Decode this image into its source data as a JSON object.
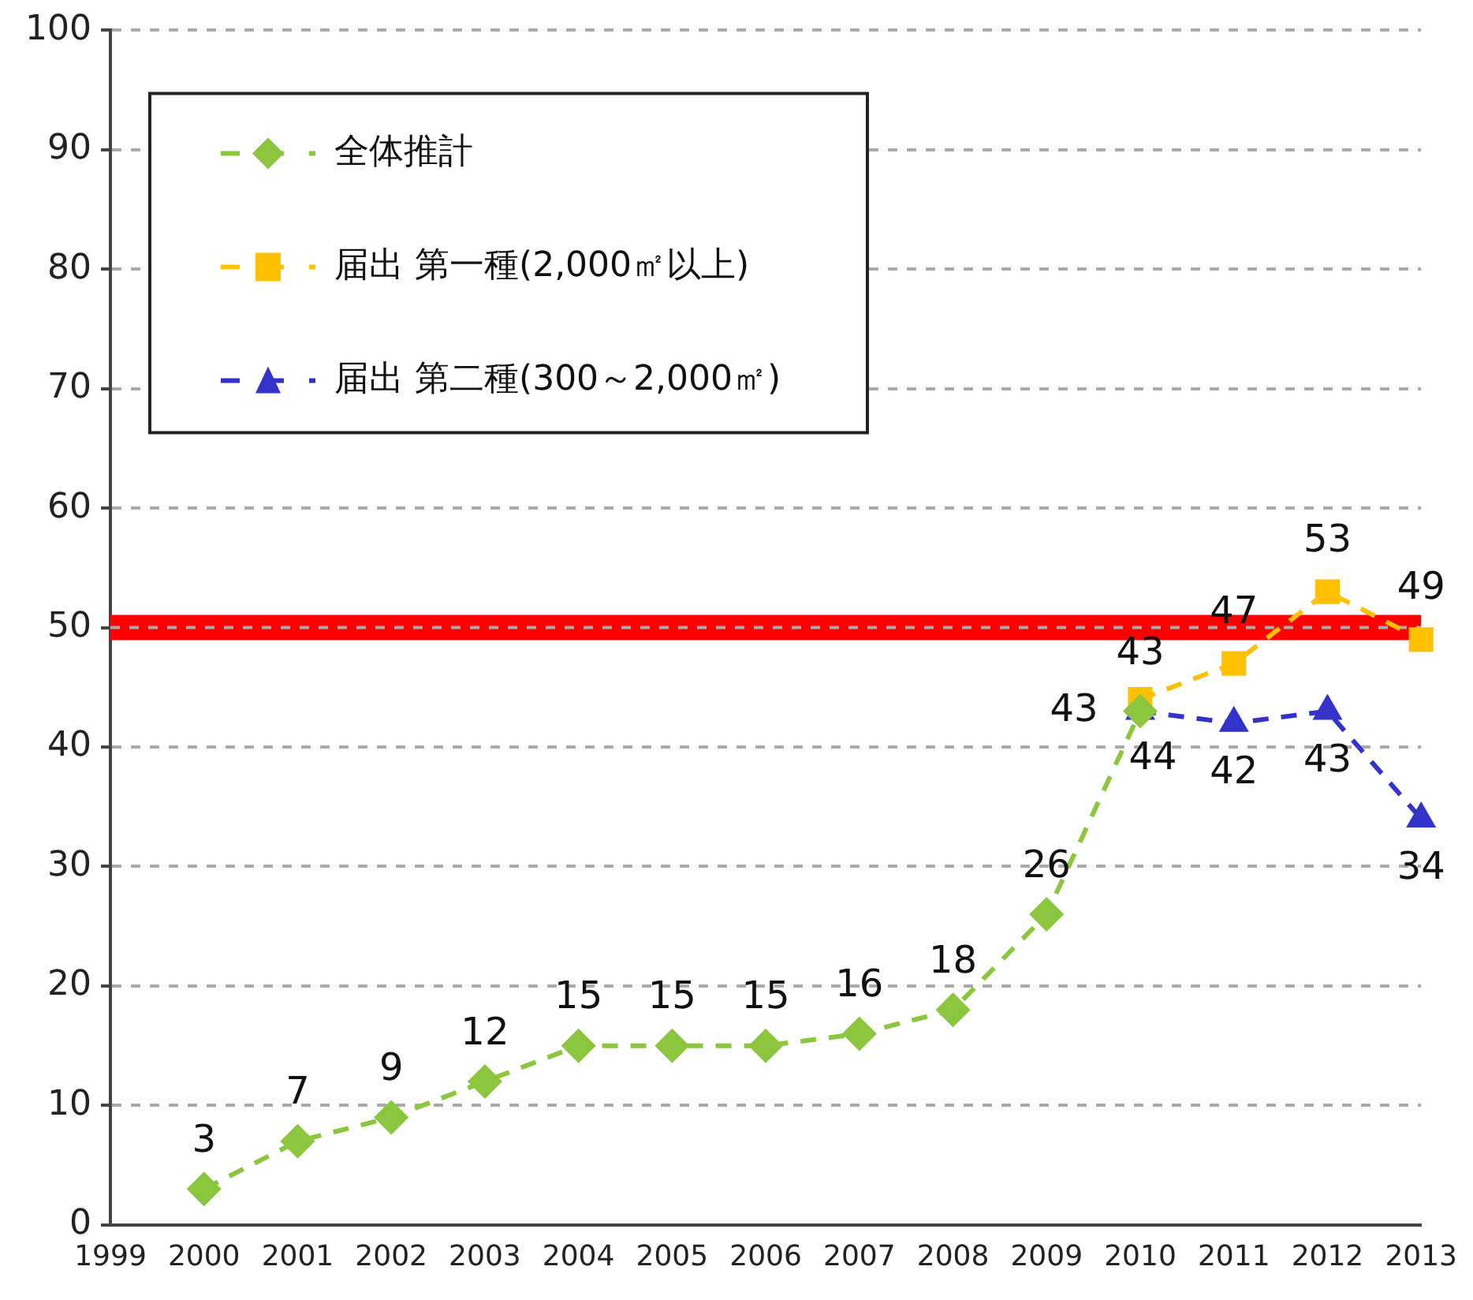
{
  "chart_data": {
    "type": "line",
    "categories": [
      "1999",
      "2000",
      "2001",
      "2002",
      "2003",
      "2004",
      "2005",
      "2006",
      "2007",
      "2008",
      "2009",
      "2010",
      "2011",
      "2012",
      "2013"
    ],
    "series": [
      {
        "name": "全体推計",
        "color": "#8cc63f",
        "marker": "diamond",
        "values": [
          null,
          3,
          7,
          9,
          12,
          15,
          15,
          15,
          16,
          18,
          26,
          43,
          null,
          null,
          null
        ]
      },
      {
        "name": "届出 第一種(2,000㎡以上)",
        "color": "#ffc000",
        "marker": "square",
        "values": [
          null,
          null,
          null,
          null,
          null,
          null,
          null,
          null,
          null,
          null,
          null,
          44,
          47,
          53,
          49
        ]
      },
      {
        "name": "届出 第二種(300～2,000㎡)",
        "color": "#3333cc",
        "marker": "triangle",
        "values": [
          null,
          null,
          null,
          null,
          null,
          null,
          null,
          null,
          null,
          null,
          null,
          43,
          42,
          43,
          34
        ]
      }
    ],
    "ylim": [
      0,
      100
    ],
    "yticks": [
      0,
      10,
      20,
      30,
      40,
      50,
      60,
      70,
      80,
      90,
      100
    ],
    "grid": "y",
    "legend": "top left",
    "line_style": "dashed",
    "data_labels": true,
    "ref_lines": [
      {
        "axis": "y",
        "value": 50,
        "color": "#ff0000"
      }
    ]
  }
}
